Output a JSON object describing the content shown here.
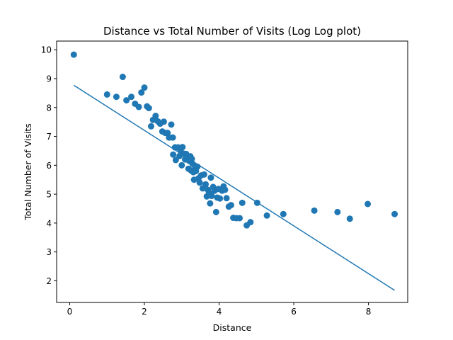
{
  "chart_data": {
    "type": "scatter",
    "title": "Distance vs Total Number of Visits (Log Log plot)",
    "xlabel": "Distance",
    "ylabel": "Total Number of Visits",
    "xlim": [
      -0.35,
      9.05
    ],
    "ylim": [
      1.25,
      10.3
    ],
    "xticks": [
      0,
      2,
      4,
      6,
      8
    ],
    "yticks": [
      2,
      3,
      4,
      5,
      6,
      7,
      8,
      9,
      10
    ],
    "grid": false,
    "colors": {
      "points": "#1f77b4",
      "line": "#1f77b4"
    },
    "series": [
      {
        "type": "scatter",
        "points": [
          [
            0.11,
            9.83
          ],
          [
            1.0,
            8.45
          ],
          [
            1.25,
            8.37
          ],
          [
            1.42,
            9.06
          ],
          [
            1.52,
            8.25
          ],
          [
            1.65,
            8.37
          ],
          [
            1.75,
            8.13
          ],
          [
            1.85,
            8.02
          ],
          [
            1.92,
            8.52
          ],
          [
            2.0,
            8.69
          ],
          [
            2.07,
            8.04
          ],
          [
            2.12,
            7.98
          ],
          [
            2.18,
            7.35
          ],
          [
            2.23,
            7.57
          ],
          [
            2.3,
            7.71
          ],
          [
            2.36,
            7.52
          ],
          [
            2.42,
            7.44
          ],
          [
            2.48,
            7.17
          ],
          [
            2.52,
            7.51
          ],
          [
            2.56,
            7.12
          ],
          [
            2.62,
            7.12
          ],
          [
            2.66,
            6.96
          ],
          [
            2.72,
            7.41
          ],
          [
            2.76,
            6.96
          ],
          [
            2.77,
            6.37
          ],
          [
            2.82,
            6.62
          ],
          [
            2.84,
            6.18
          ],
          [
            2.9,
            6.62
          ],
          [
            2.94,
            6.32
          ],
          [
            2.97,
            6.5
          ],
          [
            3.0,
            6.0
          ],
          [
            3.02,
            6.63
          ],
          [
            3.06,
            6.4
          ],
          [
            3.09,
            6.2
          ],
          [
            3.12,
            6.39
          ],
          [
            3.15,
            6.2
          ],
          [
            3.18,
            5.88
          ],
          [
            3.2,
            6.15
          ],
          [
            3.23,
            6.31
          ],
          [
            3.25,
            5.82
          ],
          [
            3.27,
            6.22
          ],
          [
            3.29,
            6.05
          ],
          [
            3.31,
            5.76
          ],
          [
            3.33,
            5.5
          ],
          [
            3.36,
            5.97
          ],
          [
            3.38,
            5.8
          ],
          [
            3.42,
            5.95
          ],
          [
            3.45,
            5.55
          ],
          [
            3.48,
            5.4
          ],
          [
            3.52,
            5.65
          ],
          [
            3.56,
            5.2
          ],
          [
            3.6,
            5.68
          ],
          [
            3.62,
            5.25
          ],
          [
            3.64,
            5.34
          ],
          [
            3.67,
            4.92
          ],
          [
            3.7,
            5.15
          ],
          [
            3.73,
            5.05
          ],
          [
            3.76,
            4.68
          ],
          [
            3.78,
            5.57
          ],
          [
            3.8,
            4.94
          ],
          [
            3.84,
            5.25
          ],
          [
            3.88,
            5.12
          ],
          [
            3.92,
            4.38
          ],
          [
            3.95,
            4.88
          ],
          [
            3.98,
            5.18
          ],
          [
            4.02,
            4.85
          ],
          [
            4.08,
            5.12
          ],
          [
            4.12,
            5.27
          ],
          [
            4.16,
            5.15
          ],
          [
            4.2,
            4.86
          ],
          [
            4.26,
            4.57
          ],
          [
            4.32,
            4.62
          ],
          [
            4.38,
            4.18
          ],
          [
            4.46,
            4.17
          ],
          [
            4.55,
            4.17
          ],
          [
            4.62,
            4.7
          ],
          [
            4.74,
            3.92
          ],
          [
            4.84,
            4.03
          ],
          [
            5.02,
            4.7
          ],
          [
            5.28,
            4.26
          ],
          [
            5.72,
            4.31
          ],
          [
            6.55,
            4.43
          ],
          [
            7.17,
            4.38
          ],
          [
            7.5,
            4.15
          ],
          [
            7.98,
            4.66
          ],
          [
            8.7,
            4.31
          ]
        ]
      },
      {
        "type": "line",
        "points": [
          [
            0.11,
            8.77
          ],
          [
            8.7,
            1.67
          ]
        ]
      }
    ]
  }
}
